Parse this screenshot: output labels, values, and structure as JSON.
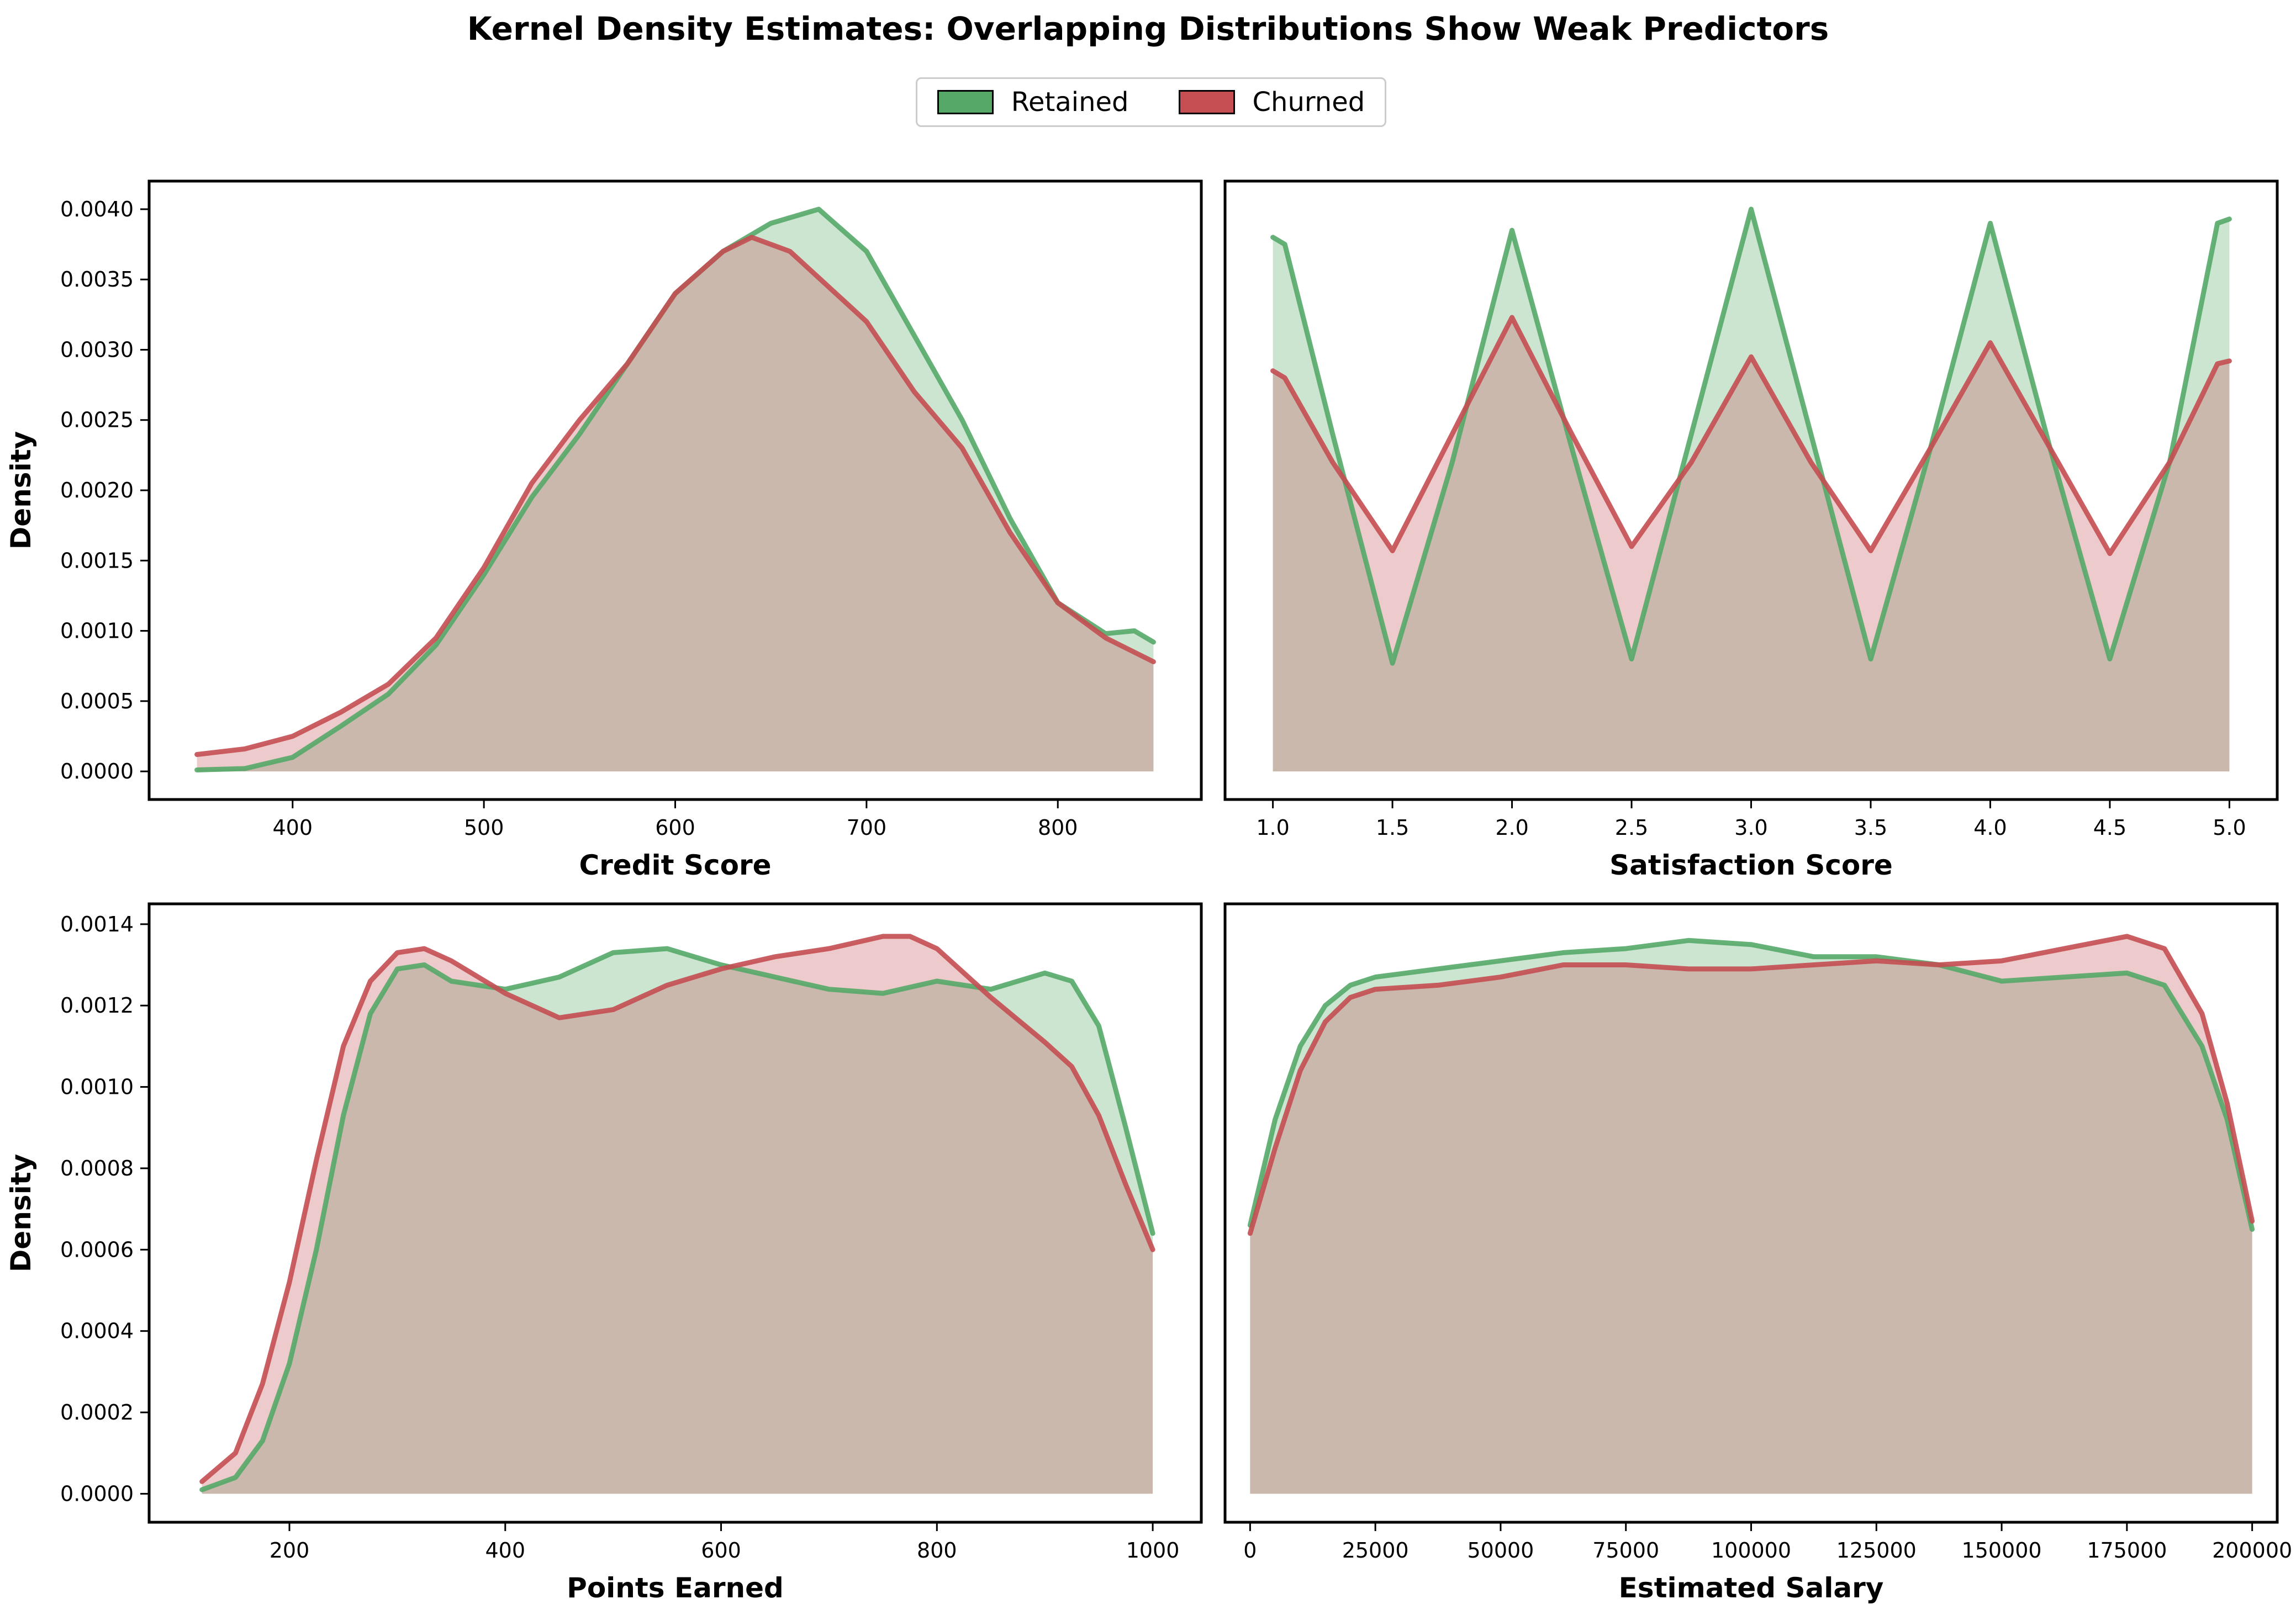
{
  "title": "Kernel Density Estimates: Overlapping Distributions Show Weak Predictors",
  "legend": {
    "location": "top-center",
    "items": [
      {
        "label": "Retained",
        "color": "#55a868"
      },
      {
        "label": "Churned",
        "color": "#c44e52"
      }
    ]
  },
  "colors": {
    "retained": "#55a868",
    "churned": "#c44e52",
    "overlap": "#c6b5aa"
  },
  "chart_data": [
    {
      "type": "area",
      "xlabel": "Credit Score",
      "ylabel": "Density",
      "xlim": [
        325,
        875
      ],
      "ylim": [
        -0.0002,
        0.0042
      ],
      "xticks": [
        400,
        500,
        600,
        700,
        800
      ],
      "xtick_labels": [
        "400",
        "500",
        "600",
        "700",
        "800"
      ],
      "yticks": [
        0,
        0.0005,
        0.001,
        0.0015,
        0.002,
        0.0025,
        0.003,
        0.0035,
        0.004
      ],
      "ytick_labels": [
        "0.0000",
        "0.0005",
        "0.0010",
        "0.0015",
        "0.0020",
        "0.0025",
        "0.0030",
        "0.0035",
        "0.0040"
      ],
      "series": [
        {
          "name": "Retained",
          "x": [
            350,
            375,
            400,
            425,
            450,
            475,
            500,
            525,
            550,
            575,
            600,
            625,
            650,
            675,
            700,
            725,
            750,
            775,
            800,
            825,
            840,
            850
          ],
          "y": [
            1e-05,
            2e-05,
            0.0001,
            0.00032,
            0.00055,
            0.0009,
            0.0014,
            0.00195,
            0.0024,
            0.0029,
            0.0034,
            0.0037,
            0.0039,
            0.004,
            0.0037,
            0.0031,
            0.0025,
            0.0018,
            0.0012,
            0.00098,
            0.001,
            0.00092
          ]
        },
        {
          "name": "Churned",
          "x": [
            350,
            375,
            400,
            425,
            450,
            475,
            500,
            525,
            550,
            575,
            600,
            625,
            640,
            660,
            700,
            725,
            750,
            775,
            800,
            825,
            850
          ],
          "y": [
            0.00012,
            0.00016,
            0.00025,
            0.00042,
            0.00062,
            0.00095,
            0.00145,
            0.00205,
            0.0025,
            0.0029,
            0.0034,
            0.0037,
            0.0038,
            0.0037,
            0.0032,
            0.0027,
            0.0023,
            0.0017,
            0.0012,
            0.00095,
            0.00078
          ]
        }
      ]
    },
    {
      "type": "area",
      "xlabel": "Satisfaction Score",
      "ylabel": "",
      "xlim": [
        0.8,
        5.2
      ],
      "ylim": [
        -0.0002,
        0.0042
      ],
      "xticks": [
        1.0,
        1.5,
        2.0,
        2.5,
        3.0,
        3.5,
        4.0,
        4.5,
        5.0
      ],
      "xtick_labels": [
        "1.0",
        "1.5",
        "2.0",
        "2.5",
        "3.0",
        "3.5",
        "4.0",
        "4.5",
        "5.0"
      ],
      "yticks": [],
      "ytick_labels": [],
      "series": [
        {
          "name": "Retained",
          "x": [
            1.0,
            1.05,
            1.25,
            1.5,
            1.75,
            2.0,
            2.25,
            2.5,
            2.75,
            3.0,
            3.25,
            3.5,
            3.75,
            4.0,
            4.25,
            4.5,
            4.75,
            4.95,
            5.0
          ],
          "y": [
            0.0038,
            0.00375,
            0.0024,
            0.00077,
            0.0022,
            0.00385,
            0.0023,
            0.0008,
            0.0024,
            0.004,
            0.0024,
            0.0008,
            0.0023,
            0.0039,
            0.0023,
            0.0008,
            0.0022,
            0.0039,
            0.00393
          ]
        },
        {
          "name": "Churned",
          "x": [
            1.0,
            1.05,
            1.25,
            1.5,
            1.75,
            2.0,
            2.25,
            2.5,
            2.75,
            3.0,
            3.25,
            3.5,
            3.75,
            4.0,
            4.25,
            4.5,
            4.75,
            4.95,
            5.0
          ],
          "y": [
            0.00285,
            0.0028,
            0.0022,
            0.00157,
            0.0024,
            0.00323,
            0.0024,
            0.0016,
            0.0022,
            0.00295,
            0.0022,
            0.00157,
            0.0023,
            0.00305,
            0.0023,
            0.00155,
            0.0022,
            0.0029,
            0.00292
          ]
        }
      ]
    },
    {
      "type": "area",
      "xlabel": "Points Earned",
      "ylabel": "Density",
      "xlim": [
        70,
        1045
      ],
      "ylim": [
        -7e-05,
        0.00145
      ],
      "xticks": [
        200,
        400,
        600,
        800,
        1000
      ],
      "xtick_labels": [
        "200",
        "400",
        "600",
        "800",
        "1000"
      ],
      "yticks": [
        0,
        0.0002,
        0.0004,
        0.0006,
        0.0008,
        0.001,
        0.0012,
        0.0014
      ],
      "ytick_labels": [
        "0.0000",
        "0.0002",
        "0.0004",
        "0.0006",
        "0.0008",
        "0.0010",
        "0.0012",
        "0.0014"
      ],
      "series": [
        {
          "name": "Retained",
          "x": [
            119,
            150,
            175,
            200,
            225,
            250,
            275,
            300,
            325,
            350,
            400,
            450,
            500,
            550,
            600,
            650,
            700,
            750,
            800,
            850,
            900,
            925,
            950,
            975,
            1000
          ],
          "y": [
            1e-05,
            4e-05,
            0.00013,
            0.00032,
            0.0006,
            0.00093,
            0.00118,
            0.00129,
            0.0013,
            0.00126,
            0.00124,
            0.00127,
            0.00133,
            0.00134,
            0.0013,
            0.00127,
            0.00124,
            0.00123,
            0.00126,
            0.00124,
            0.00128,
            0.00126,
            0.00115,
            0.0009,
            0.00064
          ]
        },
        {
          "name": "Churned",
          "x": [
            119,
            150,
            175,
            200,
            225,
            250,
            275,
            300,
            325,
            350,
            400,
            450,
            500,
            550,
            600,
            650,
            700,
            750,
            775,
            800,
            850,
            900,
            925,
            950,
            975,
            1000
          ],
          "y": [
            3e-05,
            0.0001,
            0.00027,
            0.00052,
            0.00082,
            0.0011,
            0.00126,
            0.00133,
            0.00134,
            0.00131,
            0.00123,
            0.00117,
            0.00119,
            0.00125,
            0.00129,
            0.00132,
            0.00134,
            0.00137,
            0.00137,
            0.00134,
            0.00122,
            0.00111,
            0.00105,
            0.00093,
            0.00076,
            0.0006
          ]
        }
      ]
    },
    {
      "type": "area",
      "xlabel": "Estimated Salary",
      "ylabel": "",
      "xlim": [
        -5000,
        205000
      ],
      "ylim": [
        -7e-05,
        0.00145
      ],
      "xticks": [
        0,
        25000,
        50000,
        75000,
        100000,
        125000,
        150000,
        175000,
        200000
      ],
      "xtick_labels": [
        "0",
        "25000",
        "50000",
        "75000",
        "100000",
        "125000",
        "150000",
        "175000",
        "200000"
      ],
      "yticks": [],
      "ytick_labels": [],
      "series": [
        {
          "name": "Retained",
          "x": [
            0,
            5000,
            10000,
            15000,
            20000,
            25000,
            37500,
            50000,
            62500,
            75000,
            87500,
            100000,
            112500,
            125000,
            137500,
            150000,
            162500,
            175000,
            182500,
            190000,
            195000,
            200000
          ],
          "y": [
            0.00066,
            0.00092,
            0.0011,
            0.0012,
            0.00125,
            0.00127,
            0.00129,
            0.00131,
            0.00133,
            0.00134,
            0.00136,
            0.00135,
            0.00132,
            0.00132,
            0.0013,
            0.00126,
            0.00127,
            0.00128,
            0.00125,
            0.0011,
            0.00092,
            0.00065
          ]
        },
        {
          "name": "Churned",
          "x": [
            0,
            5000,
            10000,
            15000,
            20000,
            25000,
            37500,
            50000,
            62500,
            75000,
            87500,
            100000,
            112500,
            125000,
            137500,
            150000,
            162500,
            175000,
            182500,
            190000,
            195000,
            200000
          ],
          "y": [
            0.00064,
            0.00085,
            0.00104,
            0.00116,
            0.00122,
            0.00124,
            0.00125,
            0.00127,
            0.0013,
            0.0013,
            0.00129,
            0.00129,
            0.0013,
            0.00131,
            0.0013,
            0.00131,
            0.00134,
            0.00137,
            0.00134,
            0.00118,
            0.00096,
            0.00067
          ]
        }
      ]
    }
  ]
}
